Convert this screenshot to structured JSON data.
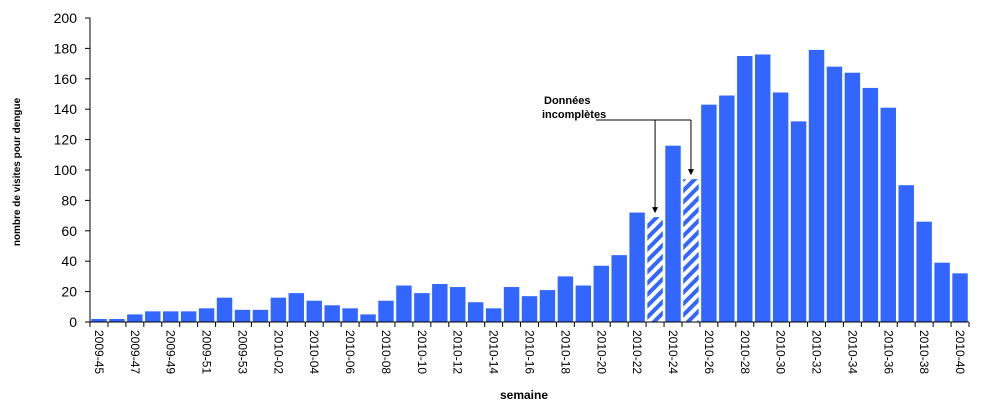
{
  "chart_data": {
    "type": "bar",
    "title": "",
    "xlabel": "semaine",
    "ylabel": "nombre de visites pour dengue",
    "ylim": [
      0,
      200
    ],
    "yticks": [
      0,
      20,
      40,
      60,
      80,
      100,
      120,
      140,
      160,
      180,
      200
    ],
    "categories": [
      "2009-45",
      "2009-46",
      "2009-47",
      "2009-48",
      "2009-49",
      "2009-50",
      "2009-51",
      "2009-52",
      "2009-53",
      "2010-01",
      "2010-02",
      "2010-03",
      "2010-04",
      "2010-05",
      "2010-06",
      "2010-07",
      "2010-08",
      "2010-09",
      "2010-10",
      "2010-11",
      "2010-12",
      "2010-13",
      "2010-14",
      "2010-15",
      "2010-16",
      "2010-17",
      "2010-18",
      "2010-19",
      "2010-20",
      "2010-21",
      "2010-22",
      "2010-23",
      "2010-24",
      "2010-25",
      "2010-26",
      "2010-27",
      "2010-28",
      "2010-29",
      "2010-30",
      "2010-31",
      "2010-32",
      "2010-33",
      "2010-34",
      "2010-35",
      "2010-36",
      "2010-37",
      "2010-38",
      "2010-39",
      "2010-40"
    ],
    "tick_labels": [
      "2009-45",
      "2009-47",
      "2009-49",
      "2009-51",
      "2009-53",
      "2010-02",
      "2010-04",
      "2010-06",
      "2010-08",
      "2010-10",
      "2010-12",
      "2010-14",
      "2010-16",
      "2010-18",
      "2010-20",
      "2010-22",
      "2010-24",
      "2010-26",
      "2010-28",
      "2010-30",
      "2010-32",
      "2010-34",
      "2010-36",
      "2010-38",
      "2010-40"
    ],
    "values": [
      2,
      2,
      5,
      7,
      7,
      7,
      9,
      16,
      8,
      8,
      16,
      19,
      14,
      11,
      9,
      5,
      14,
      24,
      19,
      25,
      23,
      13,
      9,
      23,
      17,
      21,
      30,
      24,
      37,
      44,
      72,
      69,
      116,
      94,
      143,
      149,
      175,
      176,
      151,
      132,
      179,
      168,
      164,
      154,
      141,
      90,
      66,
      39,
      32
    ],
    "incomplete": [
      "2010-23",
      "2010-25"
    ],
    "annotation": [
      "Données",
      "incomplètes"
    ],
    "grid": false,
    "colors": {
      "bar": "#3366ff",
      "hatch": "#3366ff",
      "axis": "#000000"
    }
  }
}
